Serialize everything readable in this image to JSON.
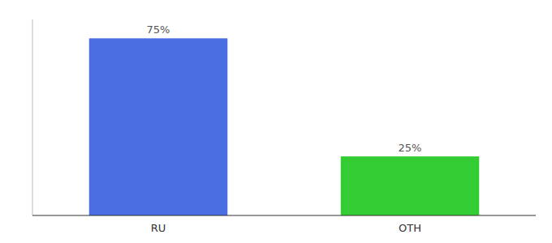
{
  "chart_data": {
    "type": "bar",
    "categories": [
      "RU",
      "OTH"
    ],
    "values": [
      75,
      25
    ],
    "value_labels": [
      "75%",
      "25%"
    ],
    "colors": [
      "#4a6fe3",
      "#33cc33"
    ],
    "ylim": [
      0,
      83
    ],
    "data_labels": true,
    "tick_labels": "x"
  }
}
